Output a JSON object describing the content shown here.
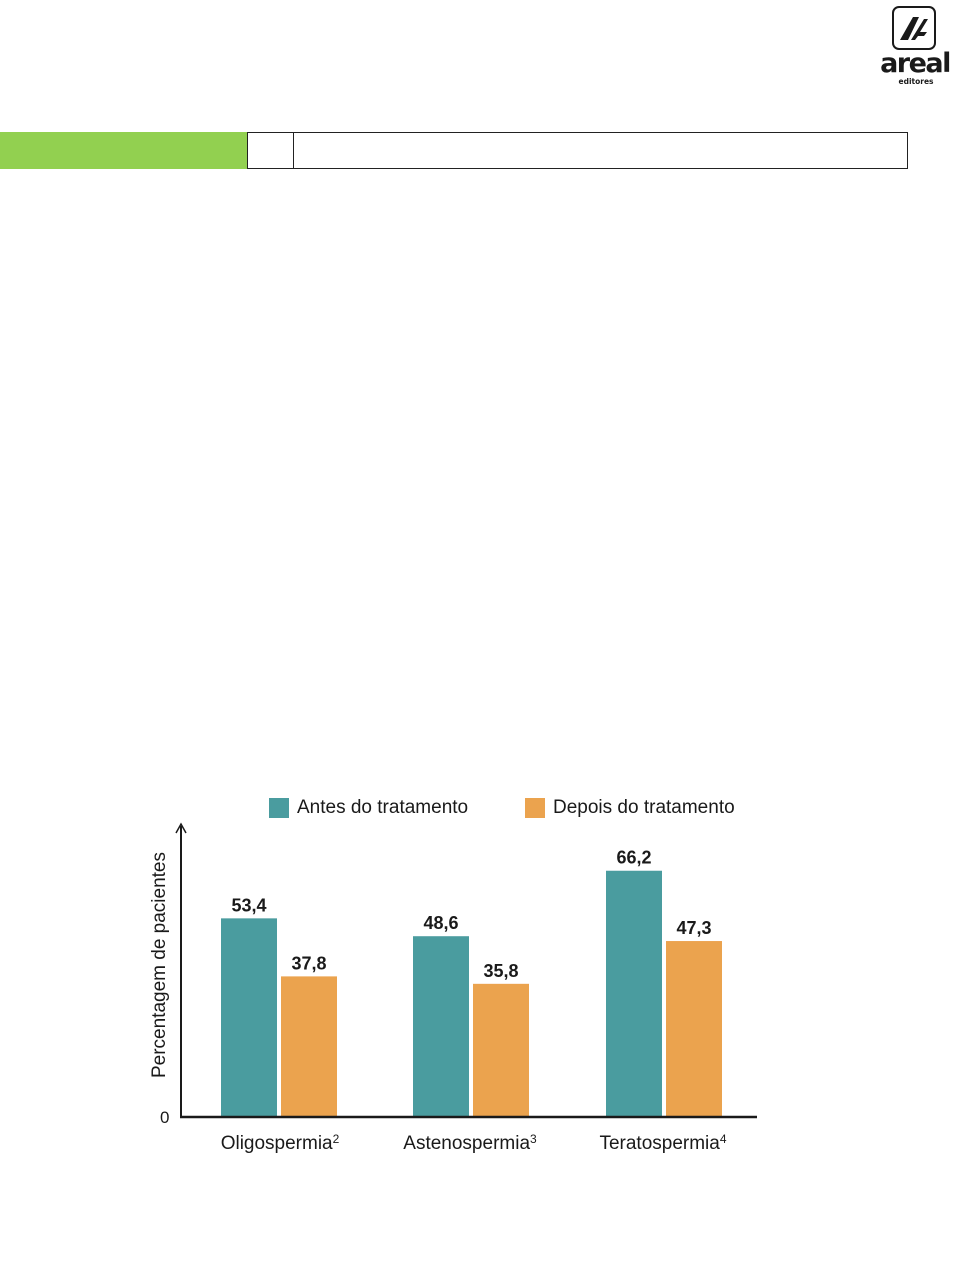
{
  "logo": {
    "name": "areal",
    "subtitle": "editores"
  },
  "chart_data": {
    "type": "bar",
    "categories": [
      "Oligospermia",
      "Astenospermia",
      "Teratospermia"
    ],
    "category_superscripts": [
      "2",
      "3",
      "4"
    ],
    "series": [
      {
        "name": "Antes do tratamento",
        "values": [
          53.4,
          48.6,
          66.2
        ],
        "labels": [
          "53,4",
          "48,6",
          "66,2"
        ],
        "color": "#4a9c9f"
      },
      {
        "name": "Depois do tratamento",
        "values": [
          37.8,
          35.8,
          47.3
        ],
        "labels": [
          "37,8",
          "35,8",
          "47,3"
        ],
        "color": "#eba34e"
      }
    ],
    "ylabel": "Percentagem de pacientes",
    "y_origin_label": "0",
    "ylim": [
      0,
      80
    ],
    "legend_position": "top",
    "grid": false
  }
}
